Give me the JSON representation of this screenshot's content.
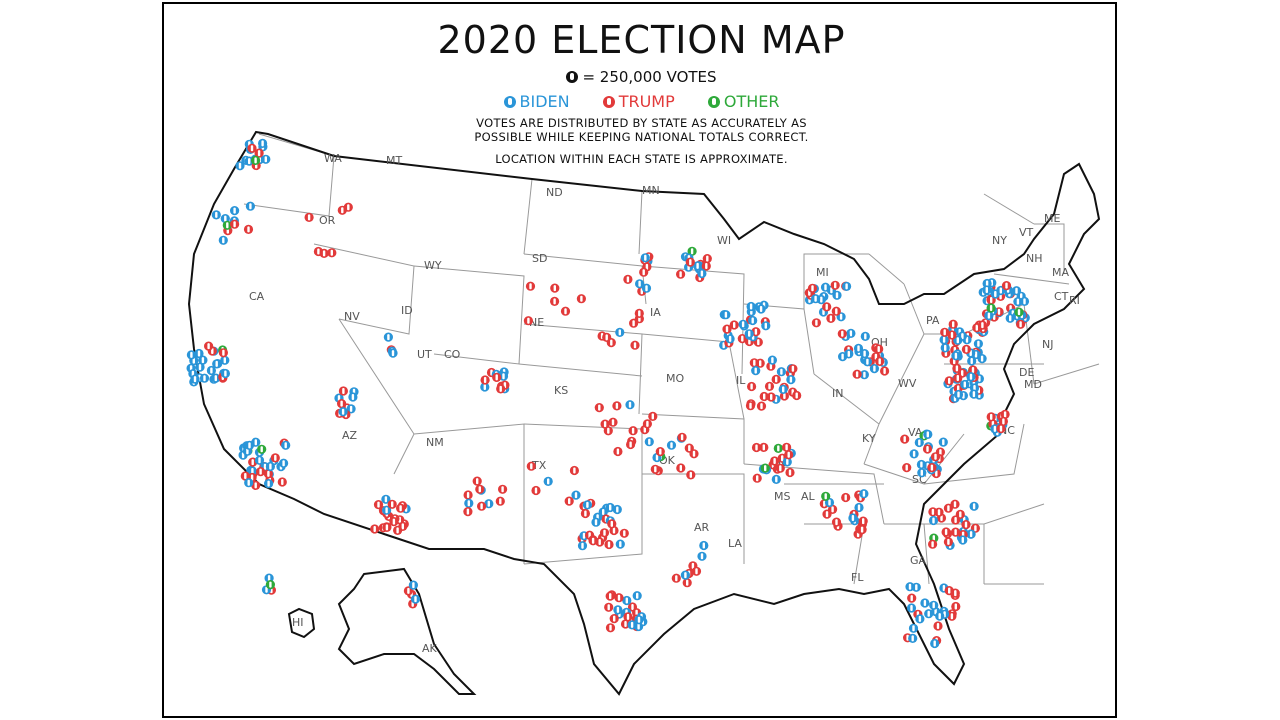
{
  "title": "2020 ELECTION MAP",
  "scale_text": "= 250,000 VOTES",
  "legend": [
    {
      "label": "BIDEN",
      "color": "#2a95d8"
    },
    {
      "label": "TRUMP",
      "color": "#e23a3a"
    },
    {
      "label": "OTHER",
      "color": "#2ea93a"
    }
  ],
  "notes": [
    "VOTES ARE DISTRIBUTED BY STATE AS ACCURATELY AS",
    "POSSIBLE WHILE KEEPING NATIONAL TOTALS CORRECT.",
    "LOCATION WITHIN EACH STATE IS APPROXIMATE."
  ],
  "colors": {
    "biden": "#2a95d8",
    "trump": "#e23a3a",
    "other": "#2ea93a",
    "neutral": "#111111"
  },
  "state_labels": [
    "WA",
    "MT",
    "ND",
    "MN",
    "OR",
    "ID",
    "WY",
    "SD",
    "WI",
    "MI",
    "NY",
    "VT",
    "ME",
    "NH",
    "MA",
    "CT",
    "RI",
    "CA",
    "NV",
    "UT",
    "CO",
    "NE",
    "IA",
    "PA",
    "OH",
    "IN",
    "IL",
    "NJ",
    "DE",
    "MD",
    "WV",
    "VA",
    "KS",
    "MO",
    "KY",
    "AZ",
    "NM",
    "OK",
    "TN",
    "NC",
    "TX",
    "AR",
    "MS",
    "AL",
    "SC",
    "GA",
    "LA",
    "FL",
    "HI",
    "AK"
  ]
}
